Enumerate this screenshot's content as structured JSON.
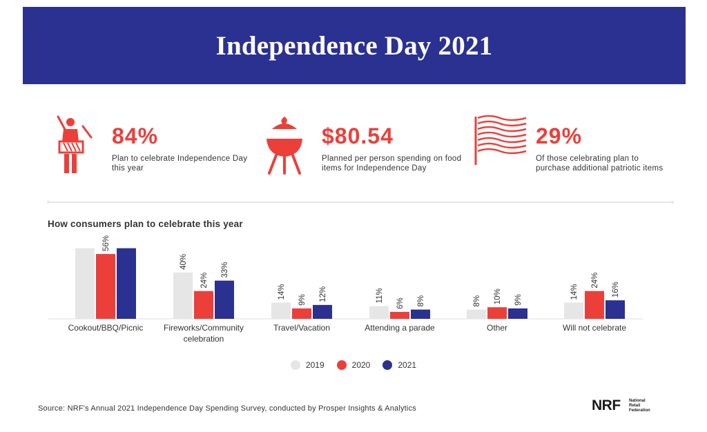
{
  "banner": {
    "title": "Independence Day 2021"
  },
  "stats": [
    {
      "value": "84%",
      "desc": "Plan to celebrate Independence Day this year",
      "icon": "drummer-icon"
    },
    {
      "value": "$80.54",
      "desc": "Planned per person spending on food items for Independence Day",
      "icon": "grill-icon"
    },
    {
      "value": "29%",
      "desc": "Of those celebrating plan to purchase additional patriotic items",
      "icon": "flag-icon"
    }
  ],
  "colors": {
    "accent": "#ec3f3a",
    "navy": "#2b3190",
    "gray": "#e6e6e6"
  },
  "chart_data": {
    "type": "bar",
    "title": "How consumers plan to celebrate this year",
    "categories": [
      "Cookout/BBQ/Picnic",
      "Fireworks/Community celebration",
      "Travel/Vacation",
      "Attending a parade",
      "Other",
      "Will not celebrate"
    ],
    "series": [
      {
        "name": "2019",
        "values": [
          null,
          40,
          14,
          11,
          8,
          14
        ],
        "color": "#e6e6e6"
      },
      {
        "name": "2020",
        "values": [
          56,
          24,
          9,
          6,
          10,
          24
        ],
        "color": "#ec3f3a"
      },
      {
        "name": "2021",
        "values": [
          null,
          33,
          12,
          8,
          9,
          16
        ],
        "color": "#2b3190"
      }
    ],
    "bar_values": [
      [
        61,
        40,
        14,
        11,
        8,
        14
      ],
      [
        56,
        24,
        9,
        6,
        10,
        24
      ],
      [
        61,
        33,
        12,
        8,
        9,
        16
      ]
    ],
    "ylim": [
      0,
      62
    ],
    "legend_position": "bottom"
  },
  "legend": [
    "2019",
    "2020",
    "2021"
  ],
  "footer": {
    "source": "Source: NRF's Annual 2021 Independence Day Spending Survey, conducted by Prosper Insights & Analytics",
    "logo_text": "NRF",
    "logo_sub": [
      "National",
      "Retail",
      "Federation"
    ]
  }
}
